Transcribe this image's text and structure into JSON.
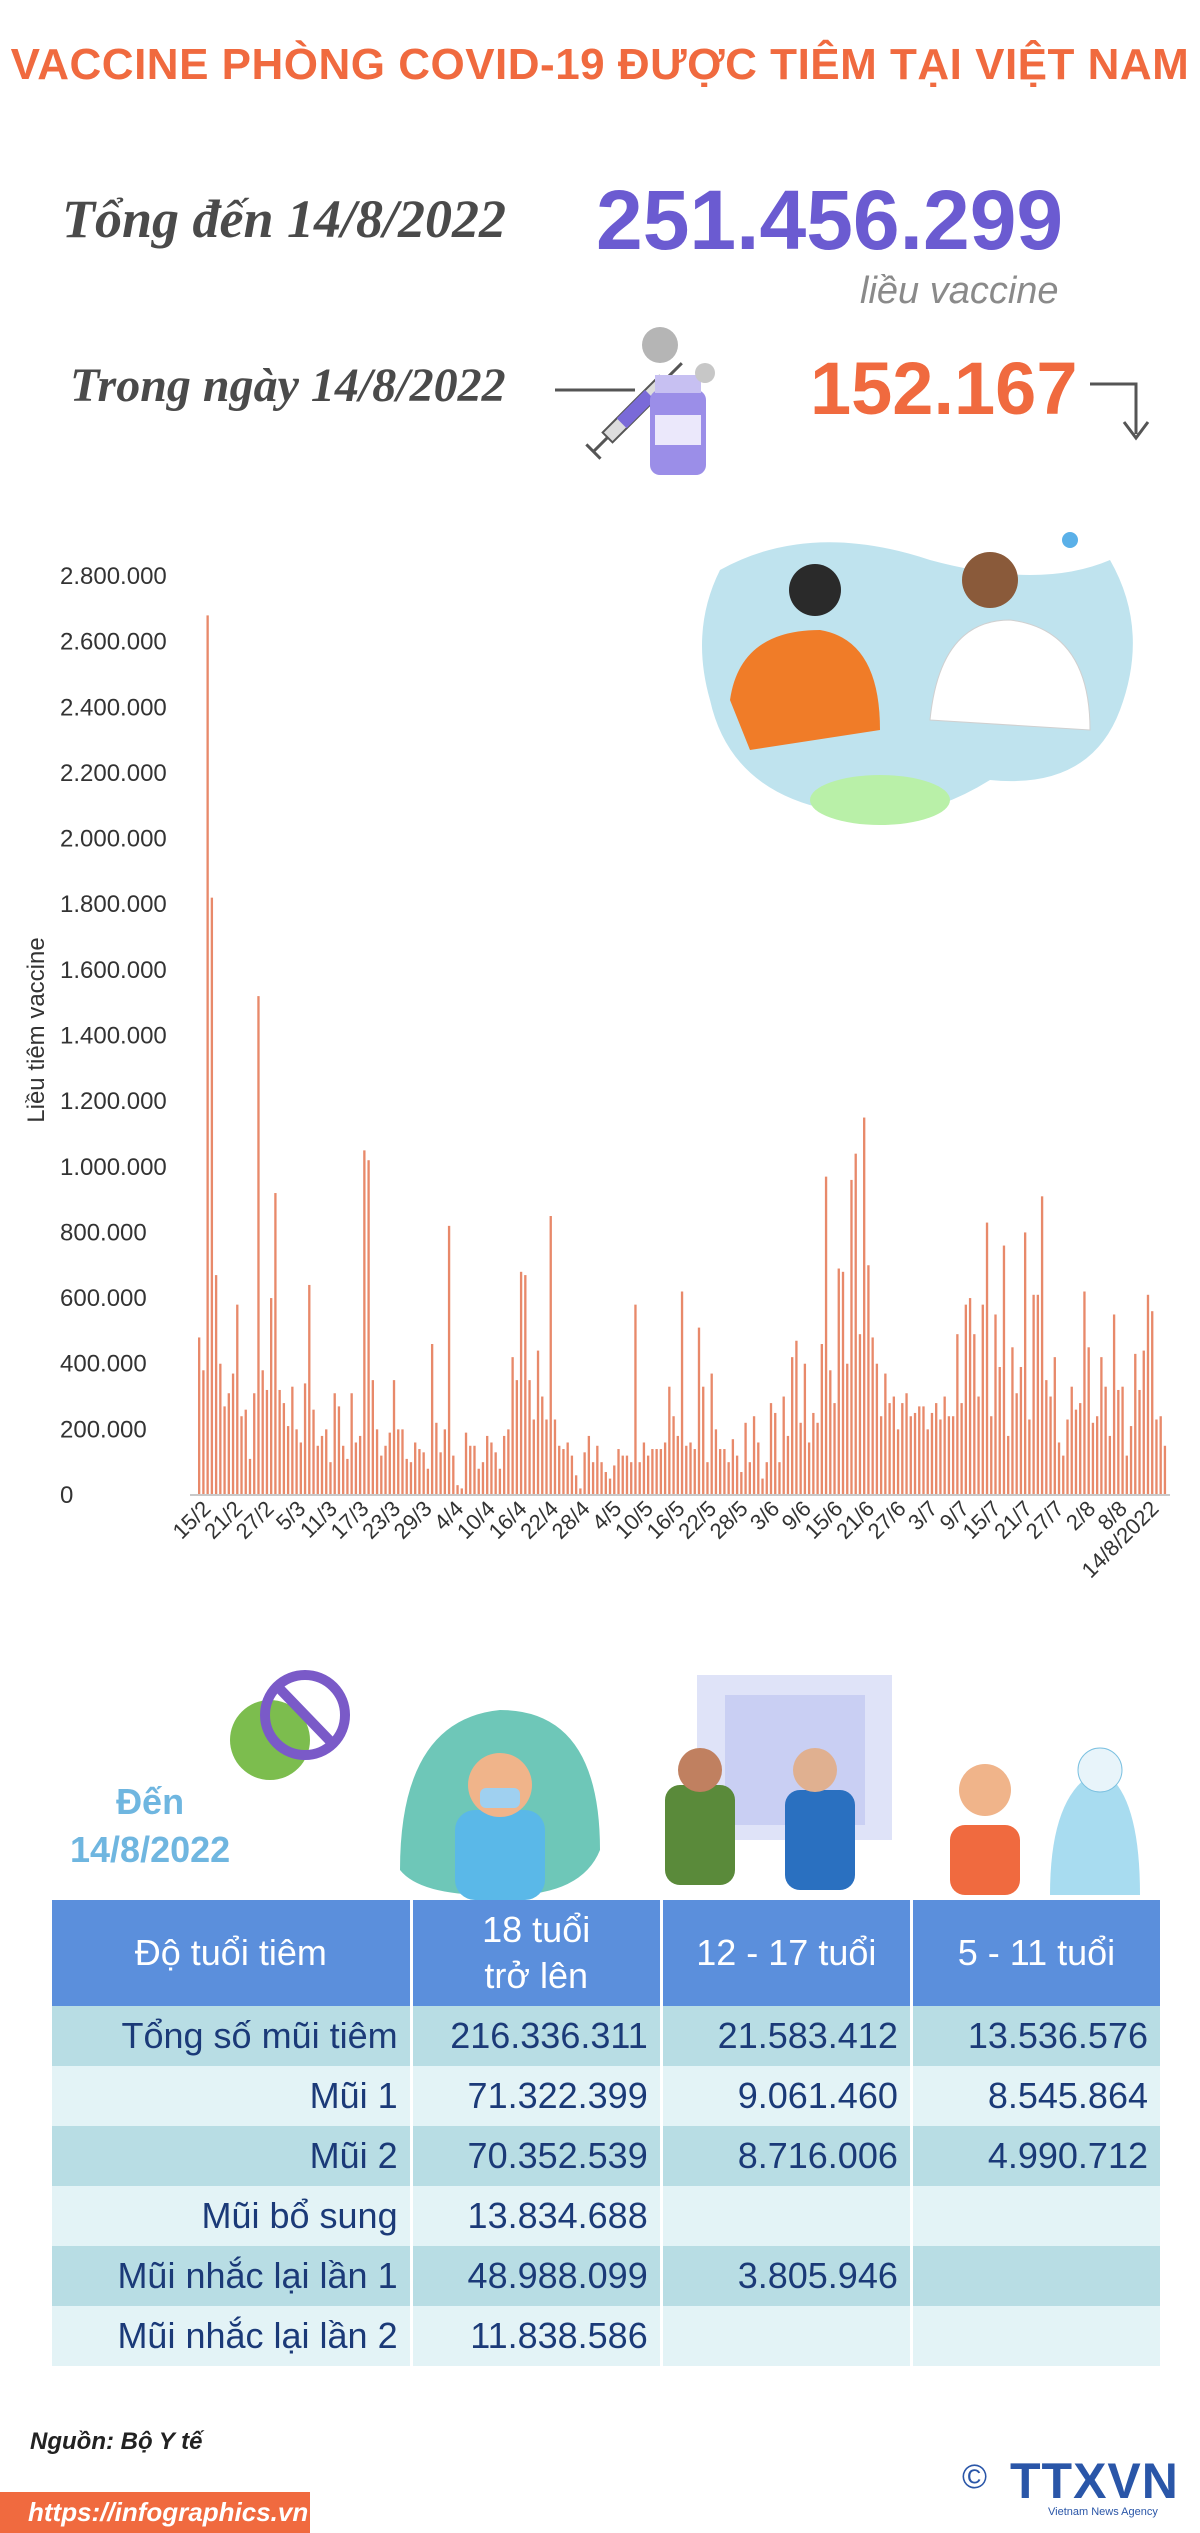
{
  "title": "VACCINE PHÒNG COVID-19 ĐƯỢC TIÊM TẠI VIỆT NAM",
  "summary": {
    "total_label": "Tổng đến 14/8/2022",
    "total_value": "251.456.299",
    "total_unit": "liều vaccine",
    "day_label": "Trong ngày 14/8/2022",
    "day_value": "152.167",
    "trend_icon": "arrow-down-icon"
  },
  "colors": {
    "accent": "#f06a3f",
    "purple": "#6b5bd1",
    "bar": "#e8896a",
    "table_header": "#5b8fdc",
    "row_dark": "#b8dde4",
    "row_light": "#e3f3f6",
    "text_blue": "#1b3a78"
  },
  "chart_data": {
    "type": "bar",
    "ylabel": "Liều tiêm vaccine",
    "ylim": [
      0,
      2800000
    ],
    "yticks": [
      "2.800.000",
      "2.600.000",
      "2.400.000",
      "2.200.000",
      "2.000.000",
      "1.800.000",
      "1.600.000",
      "1.400.000",
      "1.200.000",
      "1.000.000",
      "800.000",
      "600.000",
      "400.000",
      "200.000",
      "0"
    ],
    "xticks": [
      "15/2",
      "21/2",
      "27/2",
      "5/3",
      "11/3",
      "17/3",
      "23/3",
      "29/3",
      "4/4",
      "10/4",
      "16/4",
      "22/4",
      "28/4",
      "4/5",
      "10/5",
      "16/5",
      "22/5",
      "28/5",
      "3/6",
      "9/6",
      "15/6",
      "21/6",
      "27/6",
      "3/7",
      "9/7",
      "15/7",
      "21/7",
      "27/7",
      "2/8",
      "8/8",
      "14/8/2022"
    ],
    "values": [
      480000,
      380000,
      2680000,
      1820000,
      670000,
      400000,
      270000,
      310000,
      370000,
      580000,
      240000,
      260000,
      110000,
      310000,
      1520000,
      380000,
      320000,
      600000,
      920000,
      320000,
      280000,
      210000,
      330000,
      200000,
      160000,
      340000,
      640000,
      260000,
      150000,
      180000,
      200000,
      100000,
      310000,
      270000,
      150000,
      110000,
      310000,
      160000,
      180000,
      1050000,
      1020000,
      350000,
      200000,
      120000,
      150000,
      190000,
      350000,
      200000,
      200000,
      110000,
      100000,
      160000,
      140000,
      130000,
      80000,
      460000,
      220000,
      130000,
      200000,
      820000,
      120000,
      30000,
      20000,
      190000,
      150000,
      150000,
      80000,
      100000,
      180000,
      160000,
      130000,
      80000,
      180000,
      200000,
      420000,
      350000,
      680000,
      670000,
      350000,
      230000,
      440000,
      300000,
      230000,
      850000,
      230000,
      150000,
      140000,
      160000,
      120000,
      60000,
      20000,
      130000,
      180000,
      100000,
      150000,
      100000,
      70000,
      50000,
      90000,
      140000,
      120000,
      120000,
      100000,
      580000,
      100000,
      160000,
      120000,
      140000,
      140000,
      140000,
      160000,
      330000,
      240000,
      180000,
      620000,
      150000,
      160000,
      140000,
      510000,
      330000,
      100000,
      370000,
      200000,
      140000,
      140000,
      100000,
      170000,
      120000,
      70000,
      220000,
      100000,
      240000,
      160000,
      50000,
      100000,
      280000,
      250000,
      100000,
      300000,
      180000,
      420000,
      470000,
      220000,
      400000,
      160000,
      250000,
      220000,
      460000,
      970000,
      380000,
      280000,
      690000,
      680000,
      400000,
      960000,
      1040000,
      490000,
      1150000,
      700000,
      480000,
      400000,
      240000,
      370000,
      280000,
      300000,
      200000,
      280000,
      310000,
      240000,
      250000,
      270000,
      270000,
      200000,
      250000,
      280000,
      230000,
      300000,
      240000,
      240000,
      490000,
      280000,
      580000,
      600000,
      490000,
      300000,
      580000,
      830000,
      240000,
      550000,
      390000,
      760000,
      180000,
      450000,
      310000,
      390000,
      800000,
      230000,
      610000,
      610000,
      910000,
      350000,
      300000,
      420000,
      160000,
      120000,
      230000,
      330000,
      260000,
      280000,
      620000,
      450000,
      220000,
      240000,
      420000,
      330000,
      180000,
      550000,
      320000,
      330000,
      120000,
      210000,
      430000,
      320000,
      440000,
      610000,
      560000,
      230000,
      240000,
      150000
    ]
  },
  "table": {
    "asof_label_line1": "Đến",
    "asof_label_line2": "14/8/2022",
    "headers": [
      "Độ tuổi tiêm",
      "18 tuổi trở lên",
      "12 - 17 tuổi",
      "5 - 11 tuổi"
    ],
    "rows": [
      {
        "label": "Tổng số mũi tiêm",
        "adult": "216.336.311",
        "teen": "21.583.412",
        "child": "13.536.576"
      },
      {
        "label": "Mũi 1",
        "adult": "71.322.399",
        "teen": "9.061.460",
        "child": "8.545.864"
      },
      {
        "label": "Mũi 2",
        "adult": "70.352.539",
        "teen": "8.716.006",
        "child": "4.990.712"
      },
      {
        "label": "Mũi bổ sung",
        "adult": "13.834.688",
        "teen": "",
        "child": ""
      },
      {
        "label": "Mũi nhắc lại lần 1",
        "adult": "48.988.099",
        "teen": "3.805.946",
        "child": ""
      },
      {
        "label": "Mũi nhắc lại lần 2",
        "adult": "11.838.586",
        "teen": "",
        "child": ""
      }
    ]
  },
  "footer": {
    "source": "Nguồn: Bộ Y tế",
    "url": "https://infographics.vn",
    "logo": "TTXVN",
    "logo_sub": "Vietnam News Agency",
    "copyright": "©"
  }
}
